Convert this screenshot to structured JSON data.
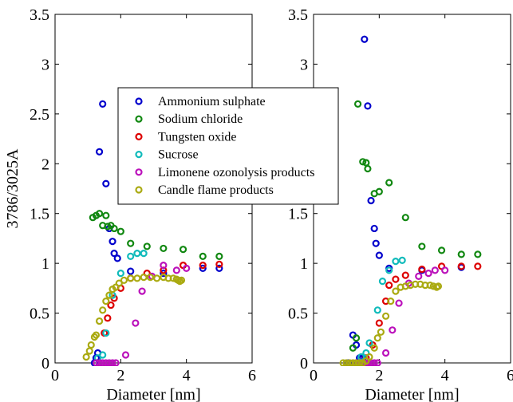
{
  "chart_data": [
    {
      "type": "scatter",
      "xlabel": "Diameter [nm]",
      "ylabel": "3786/3025A",
      "xlim": [
        0,
        6
      ],
      "ylim": [
        0,
        3.5
      ],
      "xticks": [
        "0",
        "2",
        "4",
        "6"
      ],
      "yticks": [
        "0",
        "0.5",
        "1",
        "1.5",
        "2",
        "2.5",
        "3",
        "3.5"
      ],
      "legend": "upper-right inside",
      "series": [
        {
          "name": "Ammonium sulphate",
          "color": "#0000cc",
          "points": [
            [
              1.2,
              0.0
            ],
            [
              1.25,
              0.05
            ],
            [
              1.3,
              0.1
            ],
            [
              1.35,
              2.12
            ],
            [
              1.45,
              2.6
            ],
            [
              1.55,
              1.8
            ],
            [
              1.65,
              1.35
            ],
            [
              1.75,
              1.22
            ],
            [
              1.8,
              1.1
            ],
            [
              1.9,
              1.05
            ],
            [
              2.3,
              0.92
            ],
            [
              3.3,
              0.9
            ],
            [
              4.5,
              0.95
            ],
            [
              5.0,
              0.95
            ]
          ]
        },
        {
          "name": "Sodium chloride",
          "color": "#118811",
          "points": [
            [
              1.15,
              1.46
            ],
            [
              1.25,
              1.48
            ],
            [
              1.35,
              1.5
            ],
            [
              1.45,
              1.38
            ],
            [
              1.55,
              1.48
            ],
            [
              1.6,
              1.37
            ],
            [
              1.7,
              1.38
            ],
            [
              1.8,
              1.35
            ],
            [
              2.0,
              1.32
            ],
            [
              2.3,
              1.2
            ],
            [
              2.8,
              1.17
            ],
            [
              3.3,
              1.15
            ],
            [
              3.9,
              1.14
            ],
            [
              4.5,
              1.07
            ],
            [
              5.0,
              1.07
            ]
          ]
        },
        {
          "name": "Tungsten oxide",
          "color": "#dd0000",
          "points": [
            [
              1.5,
              0.3
            ],
            [
              1.6,
              0.45
            ],
            [
              1.7,
              0.58
            ],
            [
              1.8,
              0.65
            ],
            [
              2.0,
              0.75
            ],
            [
              2.3,
              0.85
            ],
            [
              2.8,
              0.9
            ],
            [
              3.3,
              0.93
            ],
            [
              3.9,
              0.98
            ],
            [
              4.5,
              0.98
            ],
            [
              5.0,
              0.99
            ]
          ]
        },
        {
          "name": "Sucrose",
          "color": "#11bbbb",
          "points": [
            [
              1.3,
              0.05
            ],
            [
              1.45,
              0.08
            ],
            [
              1.55,
              0.3
            ],
            [
              1.75,
              0.68
            ],
            [
              2.0,
              0.9
            ],
            [
              2.3,
              1.07
            ],
            [
              2.5,
              1.1
            ],
            [
              2.7,
              1.1
            ]
          ]
        },
        {
          "name": "Limonene ozonolysis products",
          "color": "#bb11bb",
          "points": [
            [
              1.25,
              0.0
            ],
            [
              1.35,
              0.0
            ],
            [
              1.45,
              0.0
            ],
            [
              1.55,
              0.0
            ],
            [
              1.65,
              0.0
            ],
            [
              1.75,
              0.0
            ],
            [
              1.85,
              0.0
            ],
            [
              2.15,
              0.08
            ],
            [
              2.45,
              0.4
            ],
            [
              2.65,
              0.72
            ],
            [
              2.95,
              0.87
            ],
            [
              3.3,
              0.98
            ],
            [
              3.7,
              0.93
            ],
            [
              4.0,
              0.95
            ]
          ]
        },
        {
          "name": "Candle flame products",
          "color": "#aaaa11",
          "points": [
            [
              0.95,
              0.06
            ],
            [
              1.05,
              0.12
            ],
            [
              1.1,
              0.18
            ],
            [
              1.2,
              0.26
            ],
            [
              1.25,
              0.28
            ],
            [
              1.35,
              0.42
            ],
            [
              1.45,
              0.53
            ],
            [
              1.55,
              0.62
            ],
            [
              1.65,
              0.68
            ],
            [
              1.75,
              0.74
            ],
            [
              1.85,
              0.76
            ],
            [
              1.95,
              0.8
            ],
            [
              2.1,
              0.83
            ],
            [
              2.3,
              0.85
            ],
            [
              2.5,
              0.85
            ],
            [
              2.7,
              0.86
            ],
            [
              2.9,
              0.86
            ],
            [
              3.1,
              0.85
            ],
            [
              3.3,
              0.86
            ],
            [
              3.45,
              0.85
            ],
            [
              3.6,
              0.85
            ],
            [
              3.7,
              0.84
            ],
            [
              3.75,
              0.83
            ],
            [
              3.8,
              0.82
            ],
            [
              3.85,
              0.83
            ]
          ]
        }
      ]
    },
    {
      "type": "scatter",
      "xlabel": "Diameter [nm]",
      "ylabel": "",
      "xlim": [
        0,
        6
      ],
      "ylim": [
        0,
        3.5
      ],
      "xticks": [
        "0",
        "2",
        "4",
        "6"
      ],
      "yticks": [
        "0",
        "0.5",
        "1",
        "1.5",
        "2",
        "2.5",
        "3",
        "3.5"
      ],
      "series": [
        {
          "name": "Ammonium sulphate",
          "color": "#0000cc",
          "points": [
            [
              1.05,
              0.0
            ],
            [
              1.2,
              0.28
            ],
            [
              1.3,
              0.18
            ],
            [
              1.4,
              0.05
            ],
            [
              1.5,
              0.05
            ],
            [
              1.55,
              3.25
            ],
            [
              1.65,
              2.58
            ],
            [
              1.75,
              1.63
            ],
            [
              1.85,
              1.35
            ],
            [
              1.9,
              1.2
            ],
            [
              2.0,
              1.08
            ],
            [
              2.3,
              0.95
            ],
            [
              3.3,
              0.93
            ],
            [
              4.5,
              0.96
            ]
          ]
        },
        {
          "name": "Sodium chloride",
          "color": "#118811",
          "points": [
            [
              1.2,
              0.15
            ],
            [
              1.3,
              0.25
            ],
            [
              1.35,
              2.6
            ],
            [
              1.5,
              2.02
            ],
            [
              1.6,
              2.01
            ],
            [
              1.65,
              1.95
            ],
            [
              1.85,
              1.7
            ],
            [
              2.0,
              1.72
            ],
            [
              2.3,
              1.81
            ],
            [
              2.8,
              1.46
            ],
            [
              3.3,
              1.17
            ],
            [
              3.9,
              1.13
            ],
            [
              4.5,
              1.09
            ],
            [
              5.0,
              1.09
            ]
          ]
        },
        {
          "name": "Tungsten oxide",
          "color": "#dd0000",
          "points": [
            [
              1.6,
              0.05
            ],
            [
              1.8,
              0.18
            ],
            [
              2.0,
              0.4
            ],
            [
              2.2,
              0.62
            ],
            [
              2.3,
              0.78
            ],
            [
              2.5,
              0.84
            ],
            [
              2.8,
              0.88
            ],
            [
              3.3,
              0.94
            ],
            [
              3.9,
              0.97
            ],
            [
              4.5,
              0.97
            ],
            [
              5.0,
              0.97
            ]
          ]
        },
        {
          "name": "Sucrose",
          "color": "#11bbbb",
          "points": [
            [
              1.45,
              0.06
            ],
            [
              1.6,
              0.1
            ],
            [
              1.7,
              0.2
            ],
            [
              1.95,
              0.53
            ],
            [
              2.1,
              0.82
            ],
            [
              2.3,
              0.93
            ],
            [
              2.5,
              1.02
            ],
            [
              2.7,
              1.03
            ]
          ]
        },
        {
          "name": "Limonene ozonolysis products",
          "color": "#bb11bb",
          "points": [
            [
              1.3,
              0.0
            ],
            [
              1.45,
              0.0
            ],
            [
              1.55,
              0.0
            ],
            [
              1.65,
              0.0
            ],
            [
              1.75,
              0.0
            ],
            [
              1.85,
              0.0
            ],
            [
              1.95,
              0.0
            ],
            [
              2.2,
              0.1
            ],
            [
              2.4,
              0.33
            ],
            [
              2.6,
              0.6
            ],
            [
              2.9,
              0.8
            ],
            [
              3.2,
              0.87
            ],
            [
              3.5,
              0.9
            ],
            [
              3.7,
              0.93
            ],
            [
              4.0,
              0.93
            ]
          ]
        },
        {
          "name": "Candle flame products",
          "color": "#aaaa11",
          "points": [
            [
              0.9,
              0.0
            ],
            [
              1.0,
              0.0
            ],
            [
              1.1,
              0.0
            ],
            [
              1.2,
              0.0
            ],
            [
              1.3,
              0.0
            ],
            [
              1.4,
              0.0
            ],
            [
              1.5,
              0.0
            ],
            [
              1.6,
              0.02
            ],
            [
              1.7,
              0.06
            ],
            [
              1.85,
              0.15
            ],
            [
              1.95,
              0.25
            ],
            [
              2.05,
              0.31
            ],
            [
              2.2,
              0.47
            ],
            [
              2.35,
              0.62
            ],
            [
              2.5,
              0.72
            ],
            [
              2.65,
              0.76
            ],
            [
              2.8,
              0.77
            ],
            [
              2.95,
              0.78
            ],
            [
              3.1,
              0.79
            ],
            [
              3.25,
              0.79
            ],
            [
              3.4,
              0.78
            ],
            [
              3.55,
              0.78
            ],
            [
              3.65,
              0.77
            ],
            [
              3.75,
              0.76
            ],
            [
              3.8,
              0.77
            ]
          ]
        }
      ]
    }
  ]
}
